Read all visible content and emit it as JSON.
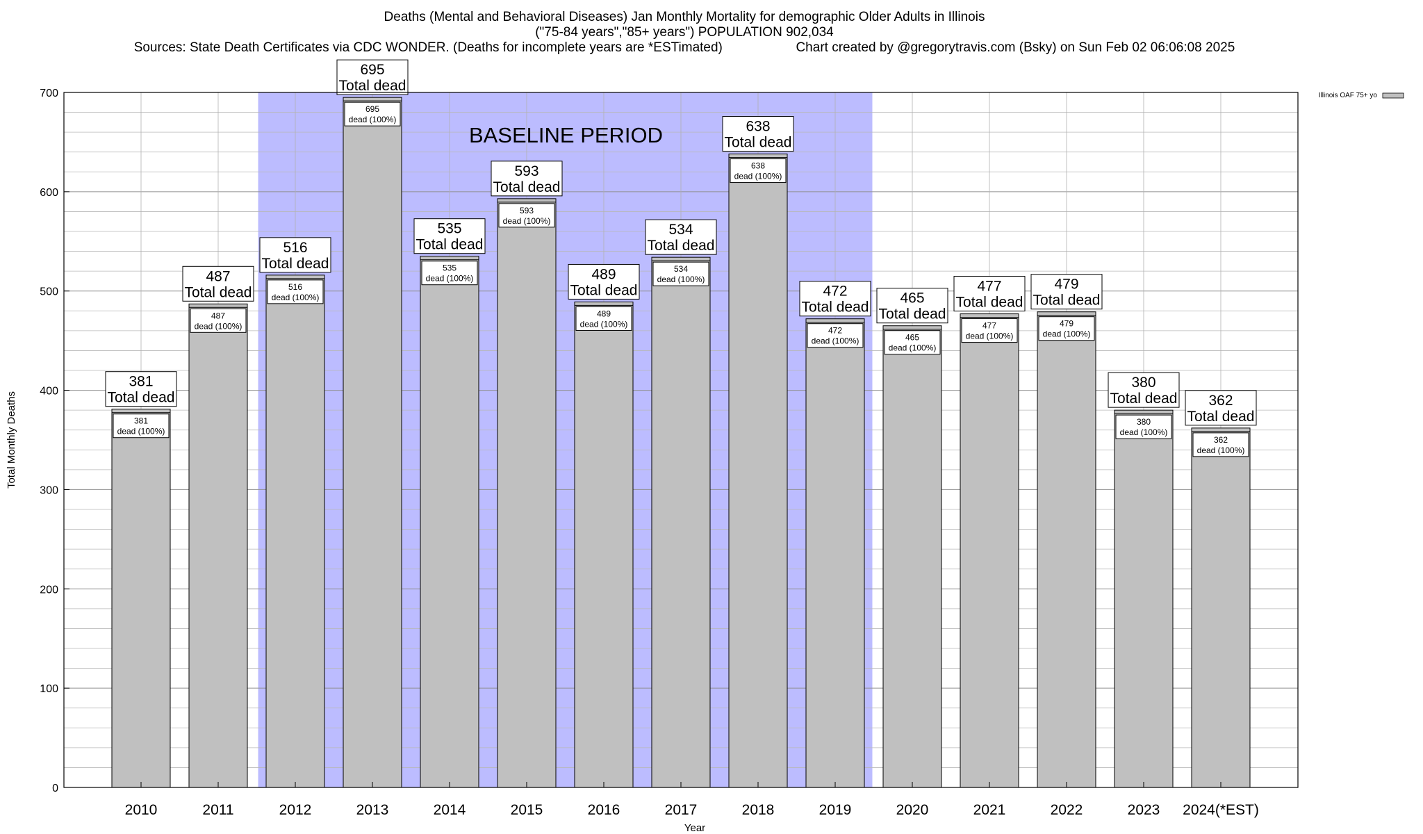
{
  "title": {
    "line1": "Deaths (Mental and Behavioral Diseases) Jan Monthly Mortality for demographic Older Adults in Illinois",
    "line2": "(\"75-84 years\",\"85+ years\") POPULATION 902,034",
    "line3": "Sources: State Death Certificates via CDC WONDER. (Deaths for incomplete years are *ESTimated)                    Chart created by @gregorytravis.com (Bsky) on Sun Feb 02 06:06:08 2025"
  },
  "chart_data": {
    "type": "bar",
    "xlabel": "Year",
    "ylabel": "Total Monthly Deaths",
    "ylim": [
      0,
      700
    ],
    "y_major_ticks": [
      0,
      100,
      200,
      300,
      400,
      500,
      600,
      700
    ],
    "y_minor_step": 20,
    "grid": true,
    "legend": {
      "placement": "top-right",
      "entries": [
        "Illinois OAF 75+ yo"
      ]
    },
    "categories": [
      "2010",
      "2011",
      "2012",
      "2013",
      "2014",
      "2015",
      "2016",
      "2017",
      "2018",
      "2019",
      "2020",
      "2021",
      "2022",
      "2023",
      "2024(*EST)"
    ],
    "series": [
      {
        "name": "Illinois OAF 75+ yo",
        "values": [
          381,
          487,
          516,
          695,
          535,
          593,
          489,
          534,
          638,
          472,
          465,
          477,
          479,
          380,
          362
        ]
      }
    ],
    "label_top_suffix": "Total dead",
    "label_inner_suffix": "dead (100%)",
    "baseline": {
      "label": "BASELINE PERIOD",
      "from": "2012",
      "to": "2019"
    },
    "colors": {
      "bar": "#c0c0c0",
      "baseline": "#bcbcff",
      "grid": "#b8b8b8"
    }
  }
}
